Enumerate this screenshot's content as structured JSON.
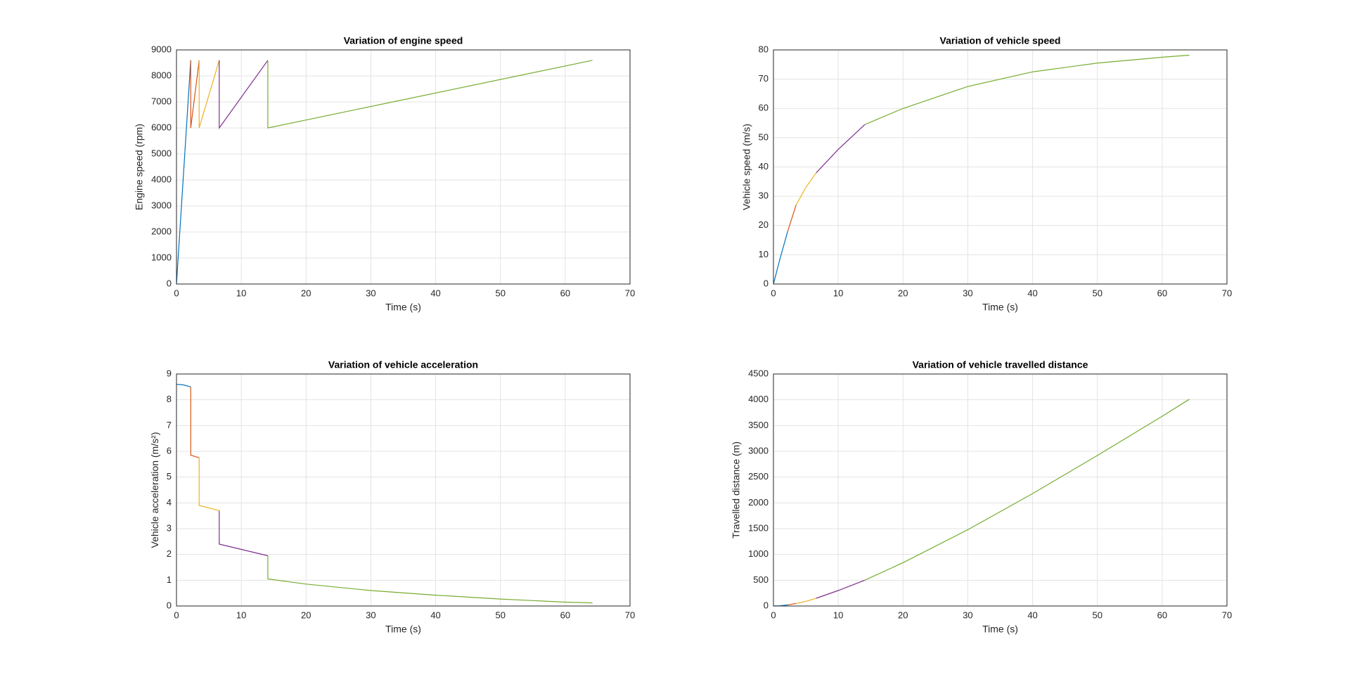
{
  "chart_data": [
    {
      "type": "line",
      "title": "Variation of engine speed",
      "xlabel": "Time (s)",
      "ylabel": "Engine speed (rpm)",
      "xlim": [
        0,
        70
      ],
      "xticks": [
        0,
        10,
        20,
        30,
        40,
        50,
        60,
        70
      ],
      "ylim": [
        0,
        9000
      ],
      "yticks": [
        0,
        1000,
        2000,
        3000,
        4000,
        5000,
        6000,
        7000,
        8000,
        9000
      ],
      "grid": true,
      "series": [
        {
          "color": "#0072BD",
          "x": [
            0,
            2.2
          ],
          "values": [
            0,
            8600
          ]
        },
        {
          "color": "#D95319",
          "x": [
            2.2,
            2.2,
            3.5
          ],
          "values": [
            8600,
            6000,
            8600
          ]
        },
        {
          "color": "#EDB120",
          "x": [
            3.5,
            3.5,
            6.6
          ],
          "values": [
            8600,
            6000,
            8600
          ]
        },
        {
          "color": "#7E2F8E",
          "x": [
            6.6,
            6.6,
            14.1
          ],
          "values": [
            8600,
            6000,
            8600
          ]
        },
        {
          "color": "#77AC30",
          "x": [
            14.1,
            14.1,
            64.2
          ],
          "values": [
            8600,
            6000,
            8600
          ]
        }
      ]
    },
    {
      "type": "line",
      "title": "Variation of vehicle speed",
      "xlabel": "Time (s)",
      "ylabel": "Vehicle speed (m/s)",
      "xlim": [
        0,
        70
      ],
      "xticks": [
        0,
        10,
        20,
        30,
        40,
        50,
        60,
        70
      ],
      "ylim": [
        0,
        80
      ],
      "yticks": [
        0,
        10,
        20,
        30,
        40,
        50,
        60,
        70,
        80
      ],
      "grid": true,
      "series": [
        {
          "color": "#0072BD",
          "x": [
            0,
            1,
            2.2
          ],
          "values": [
            0,
            8.5,
            18
          ]
        },
        {
          "color": "#D95319",
          "x": [
            2.2,
            3.5
          ],
          "values": [
            18,
            27
          ]
        },
        {
          "color": "#EDB120",
          "x": [
            3.5,
            5,
            6.6
          ],
          "values": [
            27,
            33,
            38
          ]
        },
        {
          "color": "#7E2F8E",
          "x": [
            6.6,
            10,
            14.1
          ],
          "values": [
            38,
            46,
            54.5
          ]
        },
        {
          "color": "#77AC30",
          "x": [
            14.1,
            20,
            30,
            40,
            50,
            60,
            64.2
          ],
          "values": [
            54.5,
            60,
            67.5,
            72.5,
            75.5,
            77.5,
            78.2
          ]
        }
      ]
    },
    {
      "type": "line",
      "title": "Variation of vehicle acceleration",
      "xlabel": "Time (s)",
      "ylabel": "Vehicle acceleration (m/s²)",
      "xlim": [
        0,
        70
      ],
      "xticks": [
        0,
        10,
        20,
        30,
        40,
        50,
        60,
        70
      ],
      "ylim": [
        0,
        9
      ],
      "yticks": [
        0,
        1,
        2,
        3,
        4,
        5,
        6,
        7,
        8,
        9
      ],
      "grid": true,
      "series": [
        {
          "color": "#0072BD",
          "x": [
            0,
            1,
            2.2
          ],
          "values": [
            8.6,
            8.58,
            8.5
          ]
        },
        {
          "color": "#D95319",
          "x": [
            2.2,
            2.2,
            3.5
          ],
          "values": [
            8.5,
            5.85,
            5.75
          ]
        },
        {
          "color": "#EDB120",
          "x": [
            3.5,
            3.5,
            6.6
          ],
          "values": [
            5.75,
            3.9,
            3.7
          ]
        },
        {
          "color": "#7E2F8E",
          "x": [
            6.6,
            6.6,
            14.1
          ],
          "values": [
            3.7,
            2.4,
            1.95
          ]
        },
        {
          "color": "#77AC30",
          "x": [
            14.1,
            14.1,
            20,
            30,
            40,
            50,
            60,
            64.2
          ],
          "values": [
            1.95,
            1.05,
            0.85,
            0.6,
            0.42,
            0.27,
            0.15,
            0.12
          ]
        }
      ]
    },
    {
      "type": "line",
      "title": "Variation of vehicle travelled distance",
      "xlabel": "Time (s)",
      "ylabel": "Travelled distance (m)",
      "xlim": [
        0,
        70
      ],
      "xticks": [
        0,
        10,
        20,
        30,
        40,
        50,
        60,
        70
      ],
      "ylim": [
        0,
        4500
      ],
      "yticks": [
        0,
        500,
        1000,
        1500,
        2000,
        2500,
        3000,
        3500,
        4000,
        4500
      ],
      "grid": true,
      "series": [
        {
          "color": "#0072BD",
          "x": [
            0,
            1,
            2.2
          ],
          "values": [
            0,
            4,
            20
          ]
        },
        {
          "color": "#D95319",
          "x": [
            2.2,
            3.5
          ],
          "values": [
            20,
            50
          ]
        },
        {
          "color": "#EDB120",
          "x": [
            3.5,
            5,
            6.6
          ],
          "values": [
            50,
            90,
            150
          ]
        },
        {
          "color": "#7E2F8E",
          "x": [
            6.6,
            10,
            14.1
          ],
          "values": [
            150,
            300,
            500
          ]
        },
        {
          "color": "#77AC30",
          "x": [
            14.1,
            20,
            30,
            40,
            50,
            60,
            64.2
          ],
          "values": [
            500,
            840,
            1480,
            2180,
            2920,
            3680,
            4010
          ]
        }
      ]
    }
  ]
}
